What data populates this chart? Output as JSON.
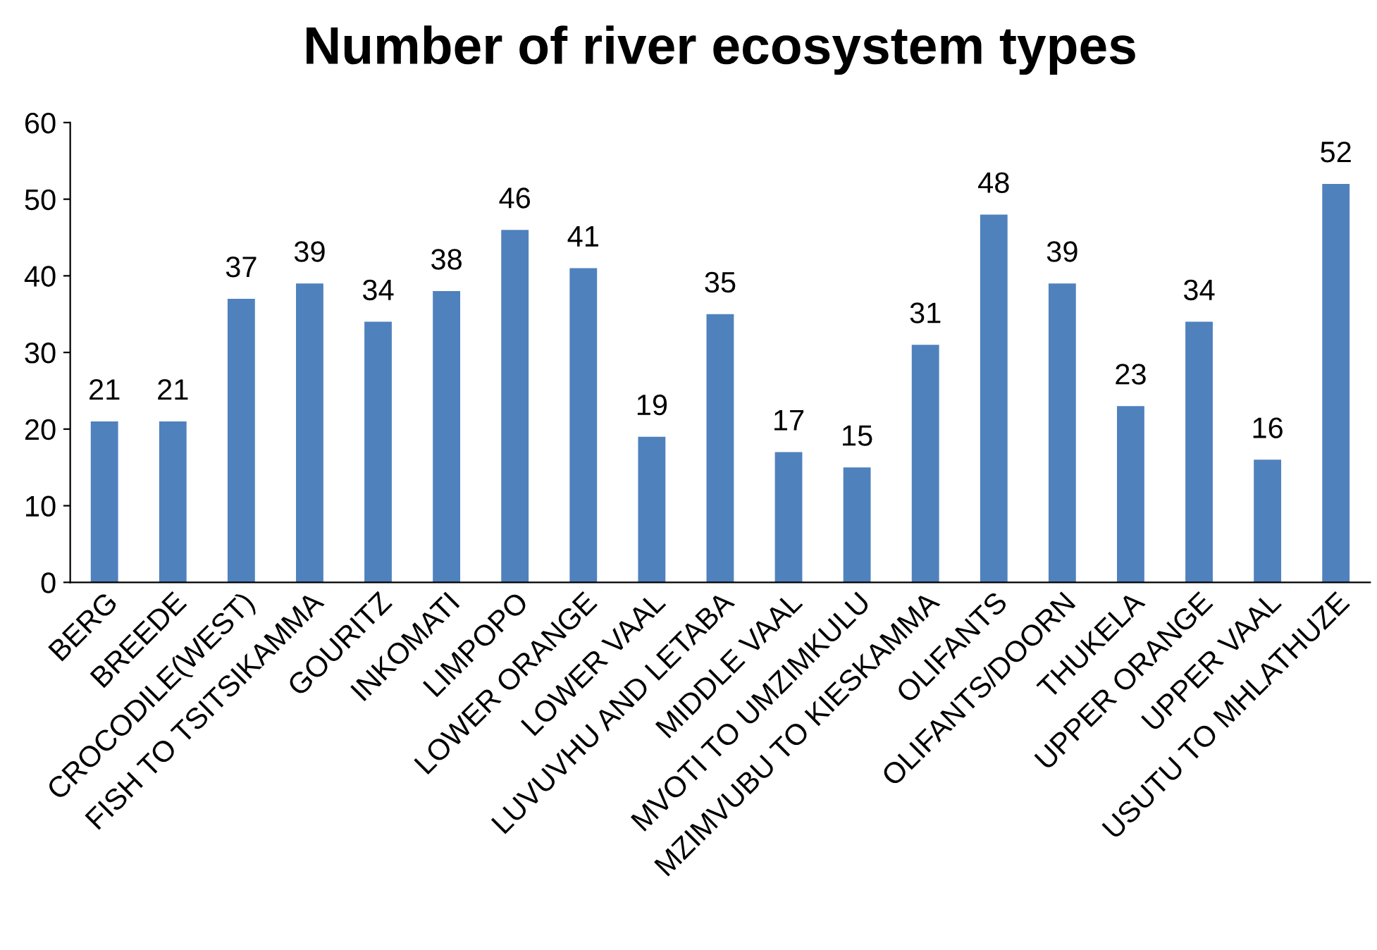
{
  "chart_data": {
    "type": "bar",
    "title": "Number of river ecosystem types",
    "categories": [
      "BERG",
      "BREEDE",
      "CROCODILE(WEST)",
      "FISH TO TSITSIKAMMA",
      "GOURITZ",
      "INKOMATI",
      "LIMPOPO",
      "LOWER ORANGE",
      "LOWER VAAL",
      "LUVUVHU AND LETABA",
      "MIDDLE VAAL",
      "MVOTI TO UMZIMKULU",
      "MZIMVUBU TO KIESKAMMA",
      "OLIFANTS",
      "OLIFANTS/DOORN",
      "THUKELA",
      "UPPER ORANGE",
      "UPPER VAAL",
      "USUTU TO MHLATHUZE"
    ],
    "values": [
      21,
      21,
      37,
      39,
      34,
      38,
      46,
      41,
      19,
      35,
      17,
      15,
      31,
      48,
      39,
      23,
      34,
      16,
      52
    ],
    "color": "#4f81bd",
    "ylim": [
      0,
      60
    ],
    "yticks": [
      0,
      10,
      20,
      30,
      40,
      50,
      60
    ],
    "grid": false,
    "data_labels": true
  }
}
